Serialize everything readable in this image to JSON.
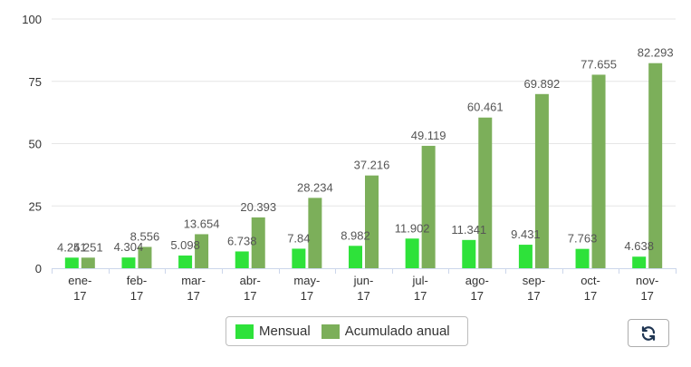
{
  "chart_data": {
    "type": "bar",
    "categories": [
      "ene-17",
      "feb-17",
      "mar-17",
      "abr-17",
      "may-17",
      "jun-17",
      "jul-17",
      "ago-17",
      "sep-17",
      "oct-17",
      "nov-17"
    ],
    "category_lines": [
      [
        "ene-",
        "17"
      ],
      [
        "feb-",
        "17"
      ],
      [
        "mar-",
        "17"
      ],
      [
        "abr-",
        "17"
      ],
      [
        "may-",
        "17"
      ],
      [
        "jun-",
        "17"
      ],
      [
        "jul-",
        "17"
      ],
      [
        "ago-",
        "17"
      ],
      [
        "sep-",
        "17"
      ],
      [
        "oct-",
        "17"
      ],
      [
        "nov-",
        "17"
      ]
    ],
    "series": [
      {
        "name": "Mensual",
        "color": "#2ee23a",
        "values": [
          4.251,
          4.304,
          5.098,
          6.738,
          7.84,
          8.982,
          11.902,
          11.341,
          9.431,
          7.763,
          4.638
        ],
        "labels": [
          "4.251",
          "4.304",
          "5.098",
          "6.738",
          "7.84",
          "8.982",
          "11.902",
          "11.341",
          "9.431",
          "7.763",
          "4.638"
        ]
      },
      {
        "name": "Acumulado anual",
        "color": "#7caf5a",
        "values": [
          4.251,
          8.556,
          13.654,
          20.393,
          28.234,
          37.216,
          49.119,
          60.461,
          69.892,
          77.655,
          82.293
        ],
        "labels": [
          "4.251",
          "8.556",
          "13.654",
          "20.393",
          "28.234",
          "37.216",
          "49.119",
          "60.461",
          "69.892",
          "77.655",
          "82.293"
        ]
      }
    ],
    "y_ticks": [
      "0",
      "25",
      "50",
      "75",
      "100"
    ],
    "ylim": [
      0,
      100
    ],
    "grid": true,
    "legend": "bottom"
  },
  "toolbar": {
    "refresh_icon": "refresh-icon"
  }
}
